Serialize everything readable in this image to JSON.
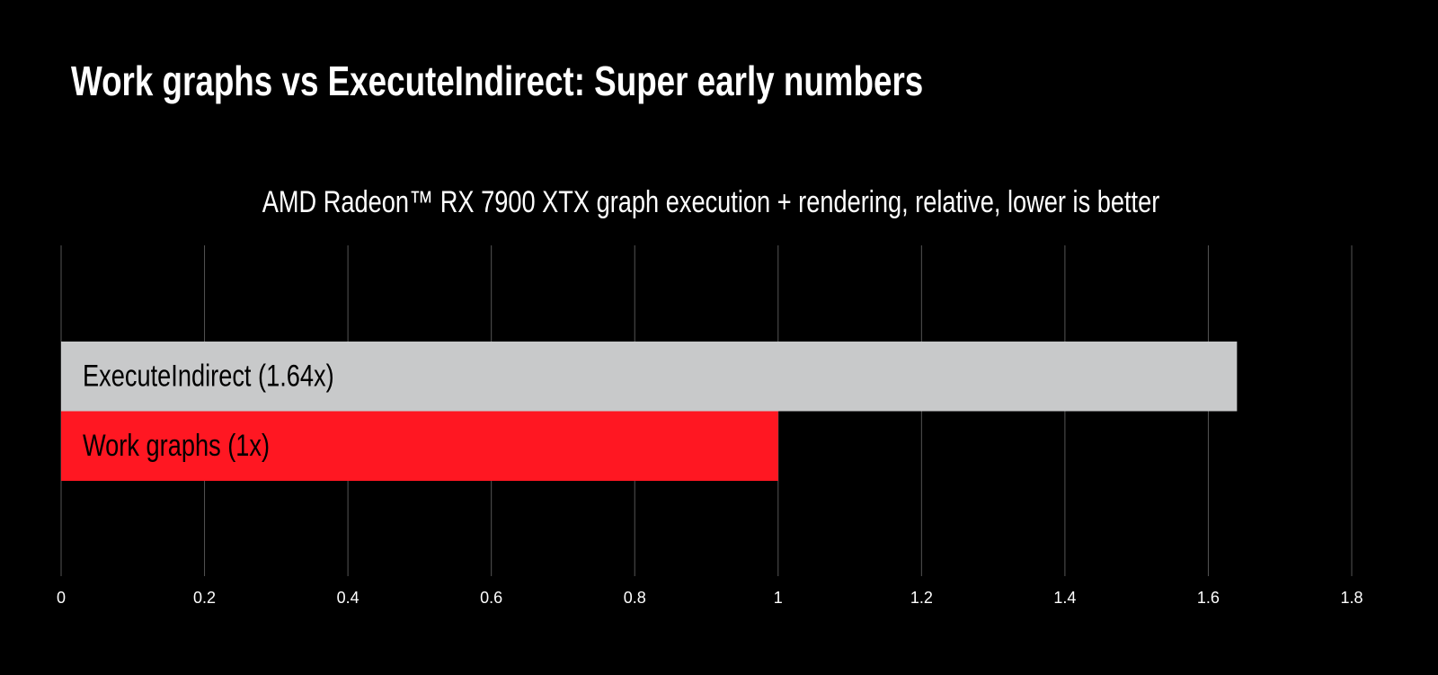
{
  "chart_data": {
    "type": "barh",
    "title": "Work graphs vs ExecuteIndirect: Super early numbers",
    "subtitle": "AMD Radeon™ RX 7900 XTX graph execution + rendering, relative, lower is better",
    "categories": [
      "ExecuteIndirect (1.64x)",
      "Work graphs (1x)"
    ],
    "values": [
      1.64,
      1
    ],
    "colors": [
      "#c8c9ca",
      "#ff1722"
    ],
    "xlim": [
      0,
      1.8
    ],
    "xticks": [
      0,
      0.2,
      0.4,
      0.6,
      0.8,
      1,
      1.2,
      1.4,
      1.6,
      1.8
    ],
    "grid": true
  }
}
